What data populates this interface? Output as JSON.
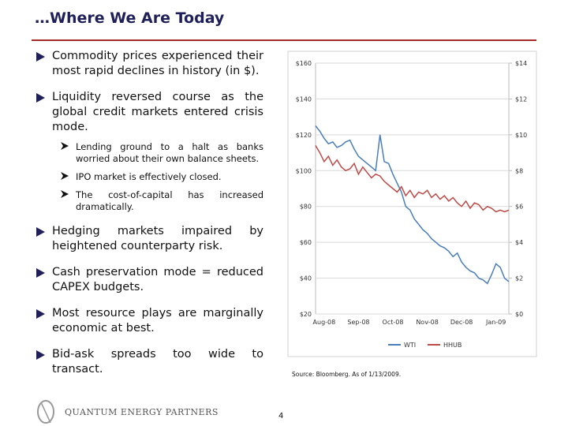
{
  "title": "…Where We Are Today",
  "bullets": [
    {
      "text": "Commodity prices experienced their most rapid declines in history (in $)."
    },
    {
      "text": "Liquidity reversed course as the global credit markets entered crisis mode.",
      "sub": [
        "Lending ground to a halt as banks worried about their own balance sheets.",
        "IPO market is effectively closed.",
        "The cost-of-capital has increased dramatically."
      ]
    },
    {
      "text": "Hedging markets impaired by heightened counterparty risk."
    },
    {
      "text": "Cash preservation mode = reduced CAPEX budgets."
    },
    {
      "text": "Most resource plays are marginally economic at best."
    },
    {
      "text": "Bid-ask spreads too wide to transact."
    }
  ],
  "chart_data": {
    "type": "line",
    "categories": [
      null,
      null,
      "Aug-08",
      null,
      null,
      null,
      null,
      null,
      null,
      null,
      "Sep-08",
      null,
      null,
      null,
      null,
      null,
      null,
      null,
      "Oct-08",
      null,
      null,
      null,
      null,
      null,
      null,
      null,
      "Nov-08",
      null,
      null,
      null,
      null,
      null,
      null,
      null,
      "Dec-08",
      null,
      null,
      null,
      null,
      null,
      null,
      null,
      "Jan-09",
      null,
      null,
      null
    ],
    "series": [
      {
        "name": "WTI",
        "color": "#4a7ebb",
        "values": [
          125,
          122,
          118,
          115,
          116,
          113,
          114,
          116,
          117,
          112,
          108,
          106,
          104,
          102,
          100,
          120,
          105,
          104,
          98,
          93,
          88,
          80,
          78,
          73,
          70,
          67,
          65,
          62,
          60,
          58,
          57,
          55,
          52,
          54,
          49,
          46,
          44,
          43,
          40,
          39,
          37,
          42,
          48,
          46,
          40,
          38
        ]
      },
      {
        "name": "HHUB",
        "color": "#be4b48",
        "axis": "y2",
        "values": [
          9.4,
          9.0,
          8.5,
          8.8,
          8.3,
          8.6,
          8.2,
          8.0,
          8.1,
          8.4,
          7.8,
          8.2,
          7.9,
          7.6,
          7.8,
          7.7,
          7.4,
          7.2,
          7.0,
          6.8,
          7.1,
          6.6,
          6.9,
          6.5,
          6.8,
          6.7,
          6.9,
          6.5,
          6.7,
          6.4,
          6.6,
          6.3,
          6.5,
          6.2,
          6.0,
          6.3,
          5.9,
          6.2,
          6.1,
          5.8,
          6.0,
          5.9,
          5.7,
          5.8,
          5.7,
          5.8
        ]
      }
    ],
    "ylim": [
      20,
      160
    ],
    "yticks": [
      {
        "value": 20,
        "label": "$20"
      },
      {
        "value": 40,
        "label": "$40"
      },
      {
        "value": 60,
        "label": "$60"
      },
      {
        "value": 80,
        "label": "$80"
      },
      {
        "value": 100,
        "label": "$100"
      },
      {
        "value": 120,
        "label": "$120"
      },
      {
        "value": 140,
        "label": "$140"
      },
      {
        "value": 160,
        "label": "$160"
      }
    ],
    "y2lim": [
      0,
      14
    ],
    "y2ticks": [
      {
        "value": 0,
        "label": "$0"
      },
      {
        "value": 2,
        "label": "$2"
      },
      {
        "value": 4,
        "label": "$4"
      },
      {
        "value": 6,
        "label": "$6"
      },
      {
        "value": 8,
        "label": "$8"
      },
      {
        "value": 10,
        "label": "$10"
      },
      {
        "value": 12,
        "label": "$12"
      },
      {
        "value": 14,
        "label": "$14"
      }
    ],
    "grid": true,
    "legend": "bottom"
  },
  "source": "Source: Bloomberg. As of 1/13/2009.",
  "footer": {
    "logo": "QUANTUM ENERGY PARTNERS",
    "page": "4"
  }
}
